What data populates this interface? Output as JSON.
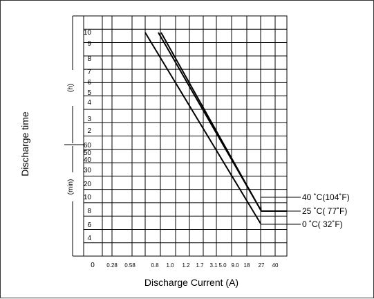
{
  "chart_data": {
    "type": "line",
    "title": "",
    "xlabel": "Discharge Current (A)",
    "ylabel": "Discharge time",
    "x_ticks": [
      "0",
      "0.28",
      "0.58",
      "0.8",
      "1.0",
      "1.2",
      "1.7",
      "3.1",
      "5.0",
      "9.0",
      "18",
      "27",
      "40"
    ],
    "y_hours": {
      "label": "(h)",
      "ticks": [
        "10",
        "9",
        "8",
        "7",
        "6",
        "5",
        "4",
        "3",
        "2"
      ]
    },
    "y_minutes": {
      "label": "(min)",
      "ticks": [
        "60",
        "50",
        "40",
        "30",
        "20",
        "10",
        "8",
        "6",
        "4"
      ]
    },
    "series": [
      {
        "name": "40 ˚C(104˚F)",
        "points": [
          [
            "0.8",
            "10 h"
          ],
          [
            "27",
            "8 min"
          ]
        ]
      },
      {
        "name": "25 ˚C( 77˚F)",
        "points": [
          [
            "0.8",
            "10 h"
          ],
          [
            "27",
            "8 min"
          ]
        ]
      },
      {
        "name": "0 ˚C( 32˚F)",
        "points": [
          [
            "0.58",
            "10 h"
          ],
          [
            "27",
            "6 min"
          ]
        ]
      }
    ],
    "grid": true,
    "legend": "right"
  }
}
